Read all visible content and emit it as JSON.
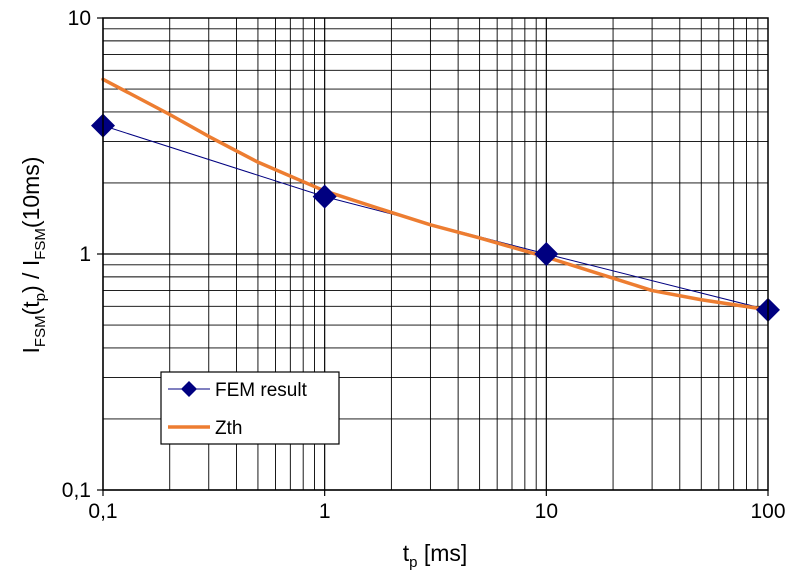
{
  "chart_data": {
    "type": "line",
    "x_scale": "log",
    "y_scale": "log",
    "xlim": [
      0.1,
      100
    ],
    "ylim": [
      0.1,
      10
    ],
    "grid": true,
    "legend_position": "lower-left",
    "x_ticks": [
      {
        "value": 0.1,
        "label": "0,1"
      },
      {
        "value": 1,
        "label": "1"
      },
      {
        "value": 10,
        "label": "10"
      },
      {
        "value": 100,
        "label": "100"
      }
    ],
    "y_ticks": [
      {
        "value": 0.1,
        "label": "0,1"
      },
      {
        "value": 1,
        "label": "1"
      },
      {
        "value": 10,
        "label": "10"
      }
    ],
    "xlabel": {
      "main": "t",
      "sub": "p",
      "rest": " [ms]"
    },
    "ylabel": {
      "p1": "I",
      "s1": "FSM",
      "p2": "(t",
      "s2": "p",
      "p3": ") / I",
      "s3": "FSM",
      "p4": "(10ms)"
    },
    "series": [
      {
        "name": "FEM result",
        "color": "#000080",
        "marker": "diamond",
        "x": [
          0.1,
          1,
          10,
          100
        ],
        "y": [
          3.5,
          1.75,
          1.0,
          0.58
        ]
      },
      {
        "name": "Zth",
        "color": "#ED7D31",
        "marker": "none",
        "x": [
          0.1,
          0.2,
          0.3,
          0.5,
          1,
          2,
          3,
          5,
          10,
          20,
          30,
          50,
          100
        ],
        "y": [
          5.5,
          3.9,
          3.15,
          2.45,
          1.85,
          1.5,
          1.33,
          1.17,
          0.97,
          0.79,
          0.7,
          0.64,
          0.58
        ]
      }
    ]
  }
}
